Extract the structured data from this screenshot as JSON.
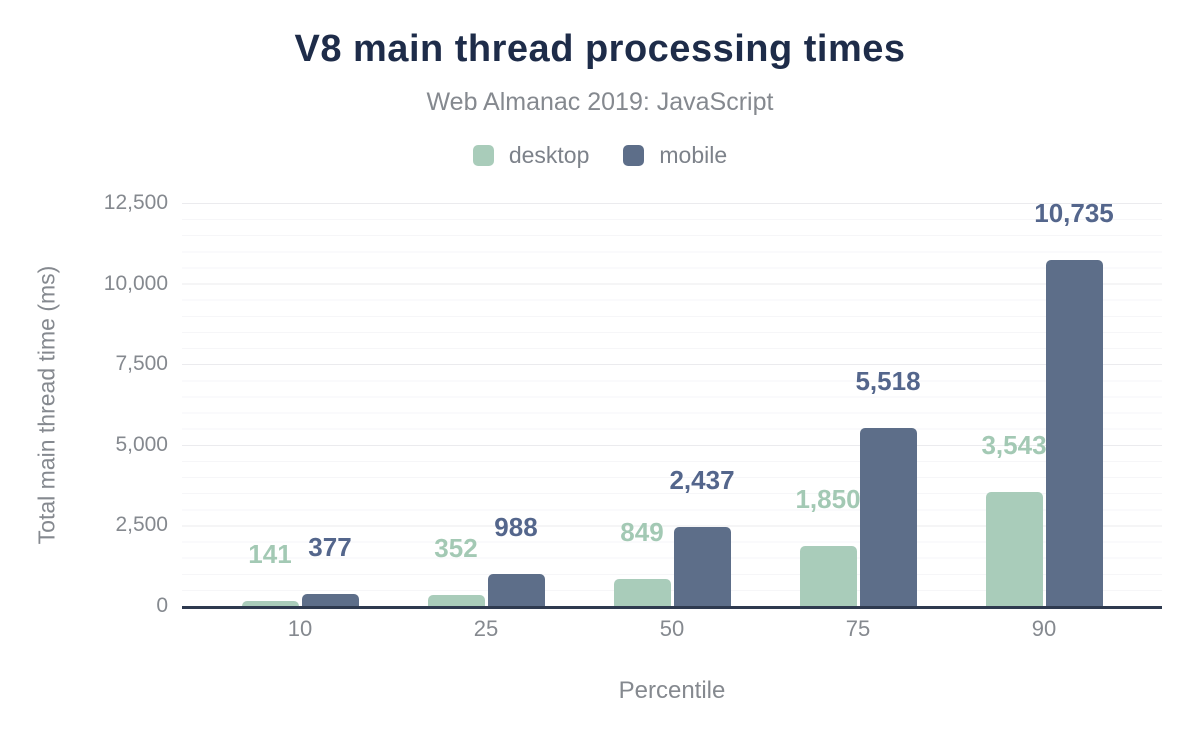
{
  "header": {
    "title": "V8 main thread processing times",
    "subtitle": "Web Almanac 2019: JavaScript"
  },
  "legend": [
    {
      "label": "desktop",
      "color": "#a9ccba"
    },
    {
      "label": "mobile",
      "color": "#5d6e89"
    }
  ],
  "chart_data": {
    "type": "bar",
    "title": "V8 main thread processing times",
    "subtitle": "Web Almanac 2019: JavaScript",
    "xlabel": "Percentile",
    "ylabel": "Total main thread time (ms)",
    "categories": [
      "10",
      "25",
      "50",
      "75",
      "90"
    ],
    "series": [
      {
        "name": "desktop",
        "color": "#a9ccba",
        "label_color": "#a3c9b4",
        "values": [
          141,
          352,
          849,
          1850,
          3543
        ],
        "labels": [
          "141",
          "352",
          "849",
          "1,850",
          "3,543"
        ]
      },
      {
        "name": "mobile",
        "color": "#5d6e89",
        "label_color": "#54668c",
        "values": [
          377,
          988,
          2437,
          5518,
          10735
        ],
        "labels": [
          "377",
          "988",
          "2,437",
          "5,518",
          "10,735"
        ]
      }
    ],
    "ylim": [
      0,
      12500
    ],
    "yticks": [
      0,
      2500,
      5000,
      7500,
      10000,
      12500
    ],
    "ytick_labels": [
      "0",
      "2,500",
      "5,000",
      "7,500",
      "10,000",
      "12,500"
    ],
    "minor_tick_interval": 500,
    "grid": true,
    "legend_position": "top"
  },
  "colors": {
    "title": "#1e2c49",
    "subtitle": "#85898f",
    "axis_line": "#2e3a4f",
    "grid_major": "#ebebee",
    "grid_minor": "#f6f6f8",
    "tick_text": "#85898f"
  }
}
